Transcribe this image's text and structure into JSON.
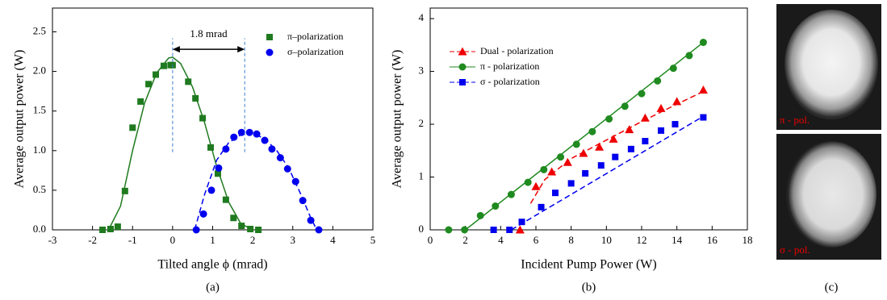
{
  "chart_data": [
    {
      "type": "scatter",
      "caption": "(a)",
      "x_label": "Tilted angle ϕ (mrad)",
      "y_label": "Average output power (W)",
      "xlim": [
        -3,
        5
      ],
      "ylim": [
        0,
        2.8
      ],
      "xticks": [
        -3,
        -2,
        -1,
        0,
        1,
        2,
        3,
        4,
        5
      ],
      "yticks": [
        {
          "value": 0,
          "label": "0.0"
        },
        0.5,
        {
          "value": 1,
          "label": "1.0"
        },
        1.5,
        {
          "value": 2,
          "label": "2.0"
        },
        2.5
      ],
      "legend": "upper right",
      "annotation": {
        "text": "1.8 mrad",
        "x": [
          0,
          1.8
        ],
        "y": 2.28,
        "guide_y": [
          0.98,
          2.42
        ]
      },
      "series": [
        {
          "name": "π–polarization",
          "color": "#1f7a1f",
          "marker": "square",
          "linestyle": "solid",
          "x": [
            -1.75,
            -1.55,
            -1.37,
            -1.19,
            -1.0,
            -0.8,
            -0.6,
            -0.42,
            -0.22,
            -0.05,
            0.0,
            0.39,
            0.57,
            0.75,
            0.95,
            1.13,
            1.33,
            1.52,
            1.72,
            1.94,
            2.14
          ],
          "values": [
            0,
            0.01,
            0.04,
            0.49,
            1.29,
            1.62,
            1.84,
            1.96,
            2.07,
            2.08,
            2.08,
            1.87,
            1.66,
            1.41,
            1.04,
            0.71,
            0.38,
            0.15,
            0.05,
            0.01,
            0
          ],
          "fit": {
            "x": [
              -1.6,
              -1.3,
              -1.0,
              -0.7,
              -0.4,
              -0.1,
              0.0,
              0.2,
              0.5,
              0.8,
              1.1,
              1.4,
              1.7,
              2.0
            ],
            "y": [
              0,
              0.3,
              1.0,
              1.6,
              1.98,
              2.17,
              2.18,
              2.1,
              1.8,
              1.35,
              0.8,
              0.35,
              0.08,
              0
            ]
          }
        },
        {
          "name": "σ–polarization",
          "color": "#0000ee",
          "marker": "circle",
          "linestyle": "dashed",
          "x": [
            0.59,
            0.77,
            0.97,
            1.15,
            1.33,
            1.53,
            1.72,
            1.92,
            2.1,
            2.3,
            2.48,
            2.69,
            2.87,
            3.07,
            3.25,
            3.45,
            3.65
          ],
          "values": [
            0,
            0.2,
            0.5,
            0.78,
            1.02,
            1.17,
            1.23,
            1.23,
            1.21,
            1.13,
            1.02,
            0.91,
            0.77,
            0.61,
            0.37,
            0.12,
            0
          ],
          "fit": {
            "x": [
              0.55,
              0.8,
              1.1,
              1.4,
              1.7,
              2.0,
              2.3,
              2.6,
              2.9,
              3.2,
              3.45,
              3.6
            ],
            "y": [
              0,
              0.45,
              0.88,
              1.1,
              1.2,
              1.22,
              1.15,
              1.0,
              0.78,
              0.45,
              0.15,
              0
            ]
          }
        }
      ]
    },
    {
      "type": "scatter",
      "caption": "(b)",
      "x_label": "Incident Pump Power (W)",
      "y_label": "Average output power (W)",
      "xlim": [
        0,
        18
      ],
      "ylim": [
        0,
        4.2
      ],
      "xticks": [
        0,
        2,
        4,
        6,
        8,
        10,
        12,
        14,
        16,
        18
      ],
      "yticks": [
        0,
        1,
        2,
        3,
        4
      ],
      "legend": "upper left",
      "series": [
        {
          "name": "Dual - polarization",
          "color": "#ee0000",
          "marker": "triangle",
          "linestyle": "dashed",
          "x": [
            5.1,
            6.0,
            6.9,
            7.8,
            8.7,
            9.6,
            10.4,
            11.3,
            12.2,
            13.1,
            14.0,
            15.5
          ],
          "values": [
            0,
            0.82,
            1.1,
            1.28,
            1.45,
            1.57,
            1.72,
            1.9,
            2.12,
            2.3,
            2.43,
            2.65
          ],
          "fit": {
            "x": [
              5.7,
              6.5,
              8.0,
              10.0,
              12.0,
              14.0,
              15.5
            ],
            "y": [
              0.5,
              0.95,
              1.35,
              1.7,
              2.05,
              2.38,
              2.62
            ]
          }
        },
        {
          "name": "π - polarization",
          "color": "#1f8a1f",
          "marker": "circle",
          "linestyle": "solid",
          "x": [
            1.05,
            1.95,
            2.85,
            3.7,
            4.6,
            5.55,
            6.45,
            7.4,
            8.3,
            9.2,
            10.15,
            11.05,
            12.0,
            12.9,
            13.8,
            14.7,
            15.5
          ],
          "values": [
            0,
            0,
            0.27,
            0.45,
            0.67,
            0.9,
            1.14,
            1.38,
            1.62,
            1.86,
            2.1,
            2.34,
            2.58,
            2.82,
            3.06,
            3.3,
            3.55
          ],
          "fit": {
            "x": [
              2.0,
              15.5
            ],
            "y": [
              0,
              3.55
            ]
          }
        },
        {
          "name": "σ - polarization",
          "color": "#0000ee",
          "marker": "square",
          "linestyle": "dashed",
          "x": [
            3.6,
            4.5,
            5.2,
            6.3,
            7.1,
            8.0,
            8.8,
            9.7,
            10.5,
            11.4,
            12.2,
            13.1,
            13.9,
            15.5
          ],
          "values": [
            0,
            0,
            0.15,
            0.43,
            0.7,
            0.88,
            1.07,
            1.22,
            1.38,
            1.53,
            1.68,
            1.88,
            2.0,
            2.13
          ],
          "fit": {
            "x": [
              4.6,
              15.5
            ],
            "y": [
              0,
              2.15
            ]
          }
        }
      ]
    }
  ],
  "panel_c": {
    "caption": "(c)",
    "images": [
      {
        "label": "π  - pol."
      },
      {
        "label": "σ - pol."
      }
    ]
  }
}
